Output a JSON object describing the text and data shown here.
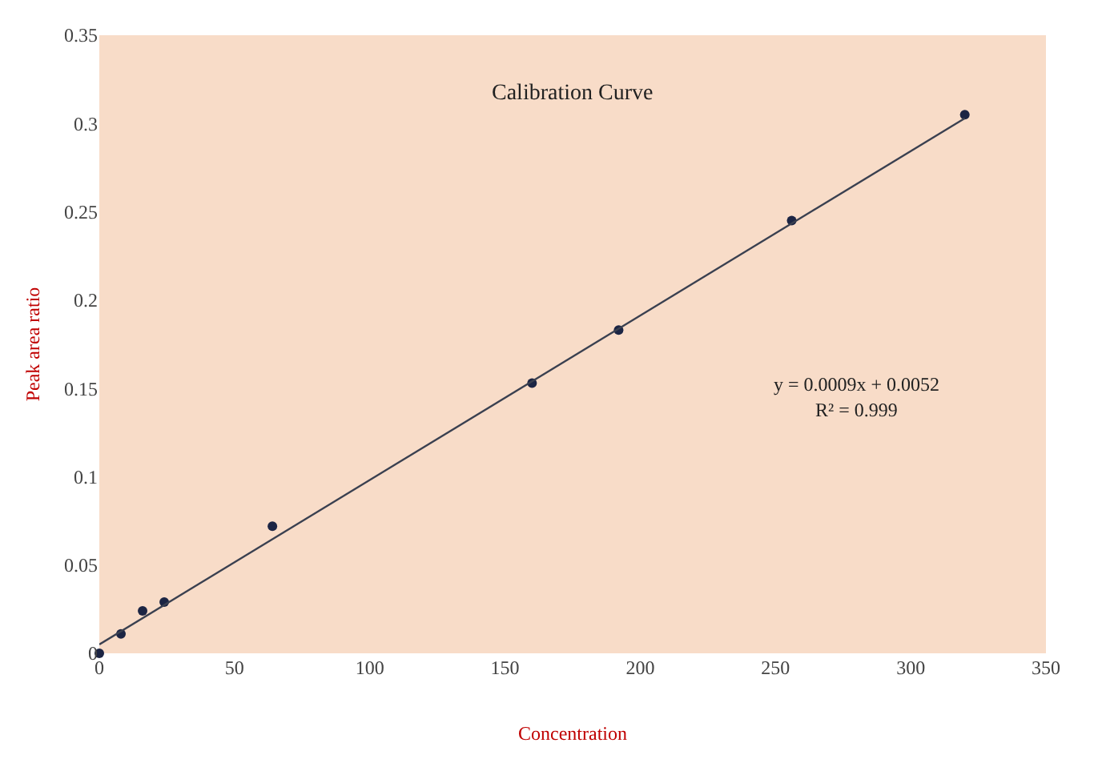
{
  "chart_data": {
    "type": "scatter",
    "title": "Calibration Curve",
    "xlabel": "Concentration",
    "ylabel": "Peak area ratio",
    "x": [
      0,
      8,
      16,
      24,
      64,
      160,
      192,
      256,
      320
    ],
    "series": [
      {
        "color": "#1c2544",
        "marker": "circle",
        "values": [
          0,
          0.011,
          0.024,
          0.029,
          0.072,
          0.153,
          0.183,
          0.245,
          0.305
        ]
      },
      {
        "type": "line",
        "color": "#3a4050",
        "x": [
          0,
          320
        ],
        "values": [
          0.005,
          0.303
        ],
        "line_style": "solid",
        "marker": "none"
      }
    ],
    "xlim": [
      0,
      350
    ],
    "xticks": [
      0,
      50,
      100,
      150,
      200,
      250,
      300,
      350
    ],
    "ylim": [
      0,
      0.35
    ],
    "yticks": [
      0,
      0.05,
      0.1,
      0.15,
      0.2,
      0.25,
      0.3,
      0.35
    ],
    "annotations": [
      "y = 0.0009x + 0.0052",
      "R² = 0.999"
    ],
    "grid": false
  }
}
